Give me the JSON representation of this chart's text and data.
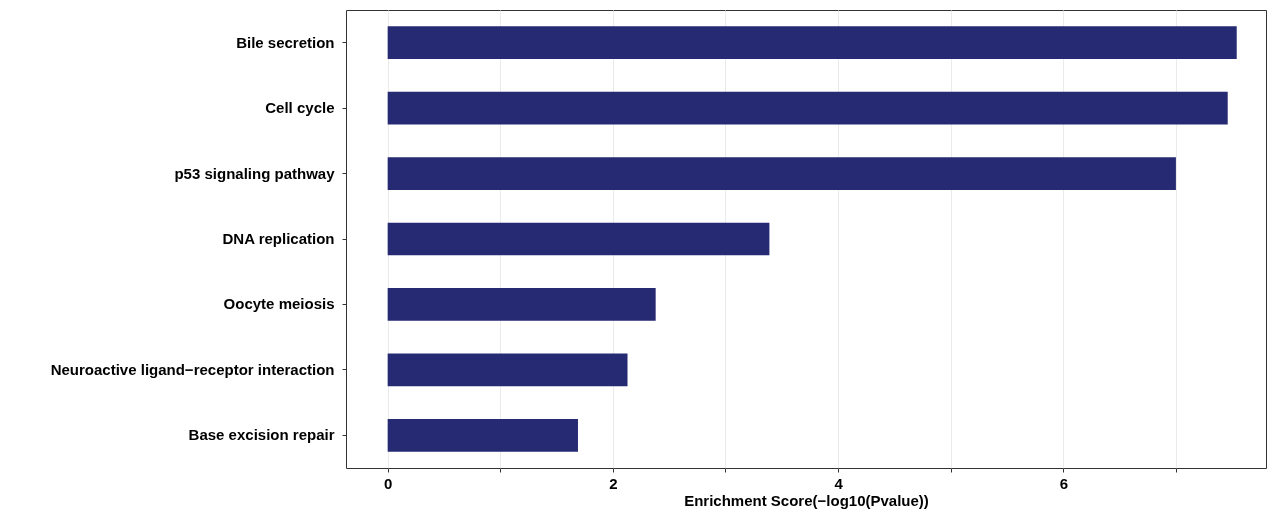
{
  "chart_data": {
    "type": "bar",
    "orientation": "horizontal",
    "xlabel": "Enrichment Score(−log10(Pvalue))",
    "categories": [
      "Bile secretion",
      "Cell cycle",
      "p53 signaling pathway",
      "DNA replication",
      "Oocyte meiosis",
      "Neuroactive ligand−receptor interaction",
      "Base excision repair"
    ],
    "values": [
      7.54,
      7.46,
      7.0,
      3.39,
      2.38,
      2.13,
      1.69
    ],
    "color": "#262a73",
    "xlim": [
      -0.37,
      7.8
    ],
    "xticks": [
      0,
      {
        "value": 1,
        "label": null
      },
      2,
      {
        "value": 3,
        "label": null
      },
      4,
      {
        "value": 5,
        "label": null
      },
      6,
      {
        "value": 7,
        "label": null
      }
    ],
    "grid": "x"
  }
}
